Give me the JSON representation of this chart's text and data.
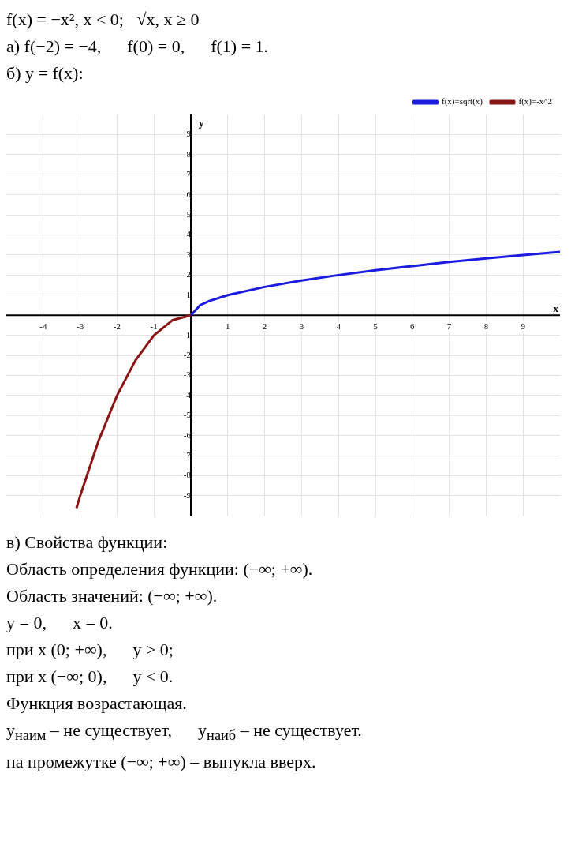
{
  "chart_data": {
    "type": "line",
    "annotations": [
      "f(x) = −x², x < 0;   √x, x ≥ 0",
      "а) f(−2) = −4,      f(0) = 0,      f(1) = 1.",
      "б) y = f(x):",
      "в) Свойства функции:",
      "Область определения функции: (−∞; +∞).",
      "Область значений: (−∞; +∞).",
      "y = 0,      x = 0.",
      "при x (0; +∞),      y > 0;",
      "при x (−∞; 0),      y < 0.",
      "Функция возрастающая.",
      "y$_{наим}$ – не существует,      y$_{наиб}$ – не существует.",
      "на промежутке (−∞; +∞) – выпукла вверх."
    ],
    "xlabel": "x",
    "ylabel": "y",
    "xlim": [
      -5,
      10
    ],
    "ylim": [
      -10,
      10
    ],
    "xticks": [
      -4,
      -3,
      -2,
      -1,
      {
        "value": 0,
        "label": null
      },
      1,
      2,
      3,
      4,
      5,
      6,
      7,
      8,
      9
    ],
    "yticks": [
      -9,
      -8,
      -7,
      -6,
      -5,
      -4,
      -3,
      -2,
      -1,
      {
        "value": 0,
        "label": null
      },
      1,
      2,
      3,
      4,
      5,
      6,
      7,
      8,
      9
    ],
    "grid": true,
    "legend": "top right",
    "marker": "none",
    "line_style": "solid",
    "series": [
      {
        "name": "f(x)=sqrt(x)",
        "color": "#1c1ce0",
        "x": [
          0,
          0.25,
          0.5,
          1,
          2,
          3,
          4,
          5,
          6,
          7,
          8,
          9,
          10
        ],
        "values": [
          0,
          0.5,
          0.71,
          1,
          1.41,
          1.73,
          2,
          2.24,
          2.45,
          2.65,
          2.83,
          3,
          3.16
        ]
      },
      {
        "name": "f(x)=-x^2",
        "color": "#8b1414",
        "x": [
          -3.1,
          -3,
          -2.5,
          -2,
          -1.5,
          -1,
          -0.5,
          0
        ],
        "values": [
          -9.61,
          -9,
          -6.25,
          -4,
          -2.25,
          -1,
          -0.25,
          0
        ]
      }
    ]
  }
}
